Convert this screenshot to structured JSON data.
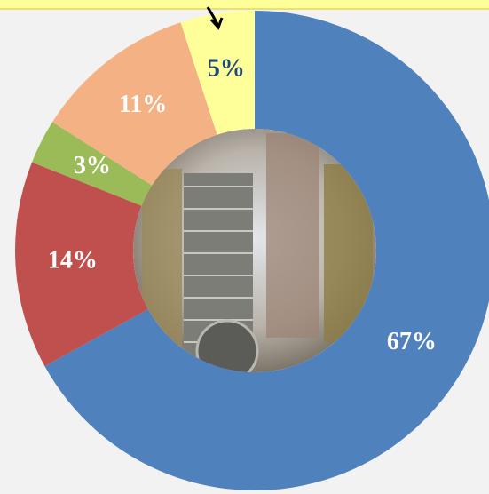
{
  "chart_data": {
    "type": "donut",
    "categories": [
      null,
      null,
      null,
      null,
      null
    ],
    "values": [
      67,
      14,
      3,
      11,
      5
    ],
    "value_labels": [
      "67%",
      "14%",
      "3%",
      "11%",
      "5%"
    ],
    "colors": [
      "#4f81bd",
      "#c0504d",
      "#9bbb59",
      "#f4b183",
      "#ffff99"
    ],
    "label_colors": [
      "#ffffff",
      "#ffffff",
      "#ffffff",
      "#ffffff",
      "#1f497d"
    ]
  }
}
